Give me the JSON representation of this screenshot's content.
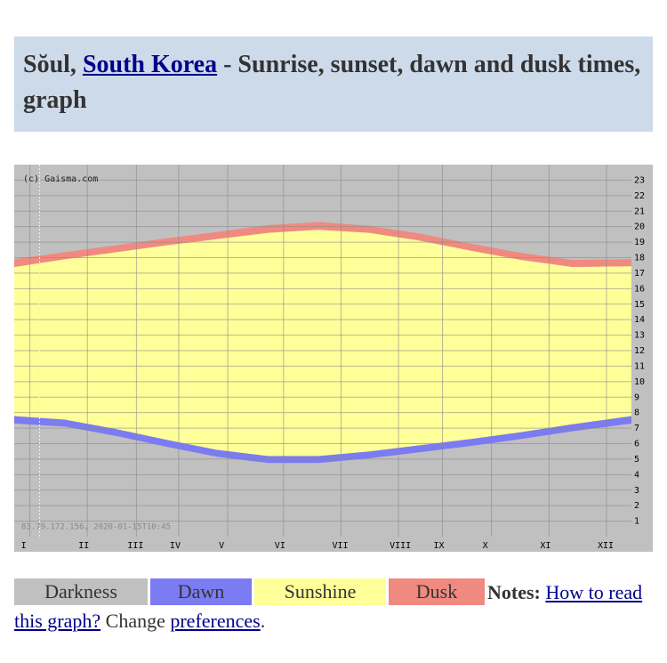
{
  "header": {
    "title_before": "Sŏul, ",
    "title_link": "South Korea",
    "title_after": " - Sunrise, sunset, dawn and dusk times, graph"
  },
  "chart_data": {
    "type": "band",
    "copyright": "(c) Gaisma.com",
    "footer": "83.79.172.156, 2020-01-15T10:45",
    "x": [
      0,
      30,
      60,
      90,
      120,
      150,
      180,
      210,
      240,
      270,
      300,
      330,
      365
    ],
    "xlim": [
      0,
      365
    ],
    "xticks": [
      {
        "value": 4,
        "label": "I"
      },
      {
        "value": 38,
        "label": "II"
      },
      {
        "value": 67,
        "label": "III"
      },
      {
        "value": 92,
        "label": "IV"
      },
      {
        "value": 121,
        "label": "V"
      },
      {
        "value": 154,
        "label": "VI"
      },
      {
        "value": 188,
        "label": "VII"
      },
      {
        "value": 222,
        "label": "VIII"
      },
      {
        "value": 248,
        "label": "IX"
      },
      {
        "value": 277,
        "label": "X"
      },
      {
        "value": 311,
        "label": "XI"
      },
      {
        "value": 345,
        "label": "XII"
      }
    ],
    "ylim": [
      0,
      24
    ],
    "yticks": [
      1,
      2,
      3,
      4,
      5,
      6,
      7,
      8,
      9,
      10,
      11,
      12,
      13,
      14,
      15,
      16,
      17,
      18,
      19,
      20,
      21,
      22,
      23
    ],
    "current_day": 15,
    "grid": true,
    "series": [
      {
        "name": "Darkness",
        "color": "#c0c0c0",
        "values": [
          17.9,
          18.35,
          18.8,
          19.25,
          19.65,
          20.1,
          20.3,
          20.05,
          19.55,
          18.9,
          18.3,
          17.85,
          17.9
        ]
      },
      {
        "name": "Dawn",
        "color": "#7b7bf2",
        "values": [
          7.3,
          7.1,
          6.5,
          5.8,
          5.15,
          4.75,
          4.75,
          5.05,
          5.45,
          5.85,
          6.3,
          6.8,
          7.3
        ]
      },
      {
        "name": "Sunshine",
        "color": "#ffff99",
        "values": [
          7.78,
          7.55,
          6.95,
          6.25,
          5.6,
          5.2,
          5.2,
          5.5,
          5.9,
          6.3,
          6.75,
          7.25,
          7.78
        ]
      },
      {
        "name": "Dusk",
        "color": "#f08a80",
        "values": [
          17.4,
          17.9,
          18.35,
          18.8,
          19.2,
          19.6,
          19.8,
          19.6,
          19.1,
          18.45,
          17.85,
          17.4,
          17.45
        ]
      }
    ]
  },
  "notes": {
    "label": "Notes:",
    "link1": "How to read this graph?",
    "text": " Change ",
    "link2": "preferences",
    "end": "."
  }
}
